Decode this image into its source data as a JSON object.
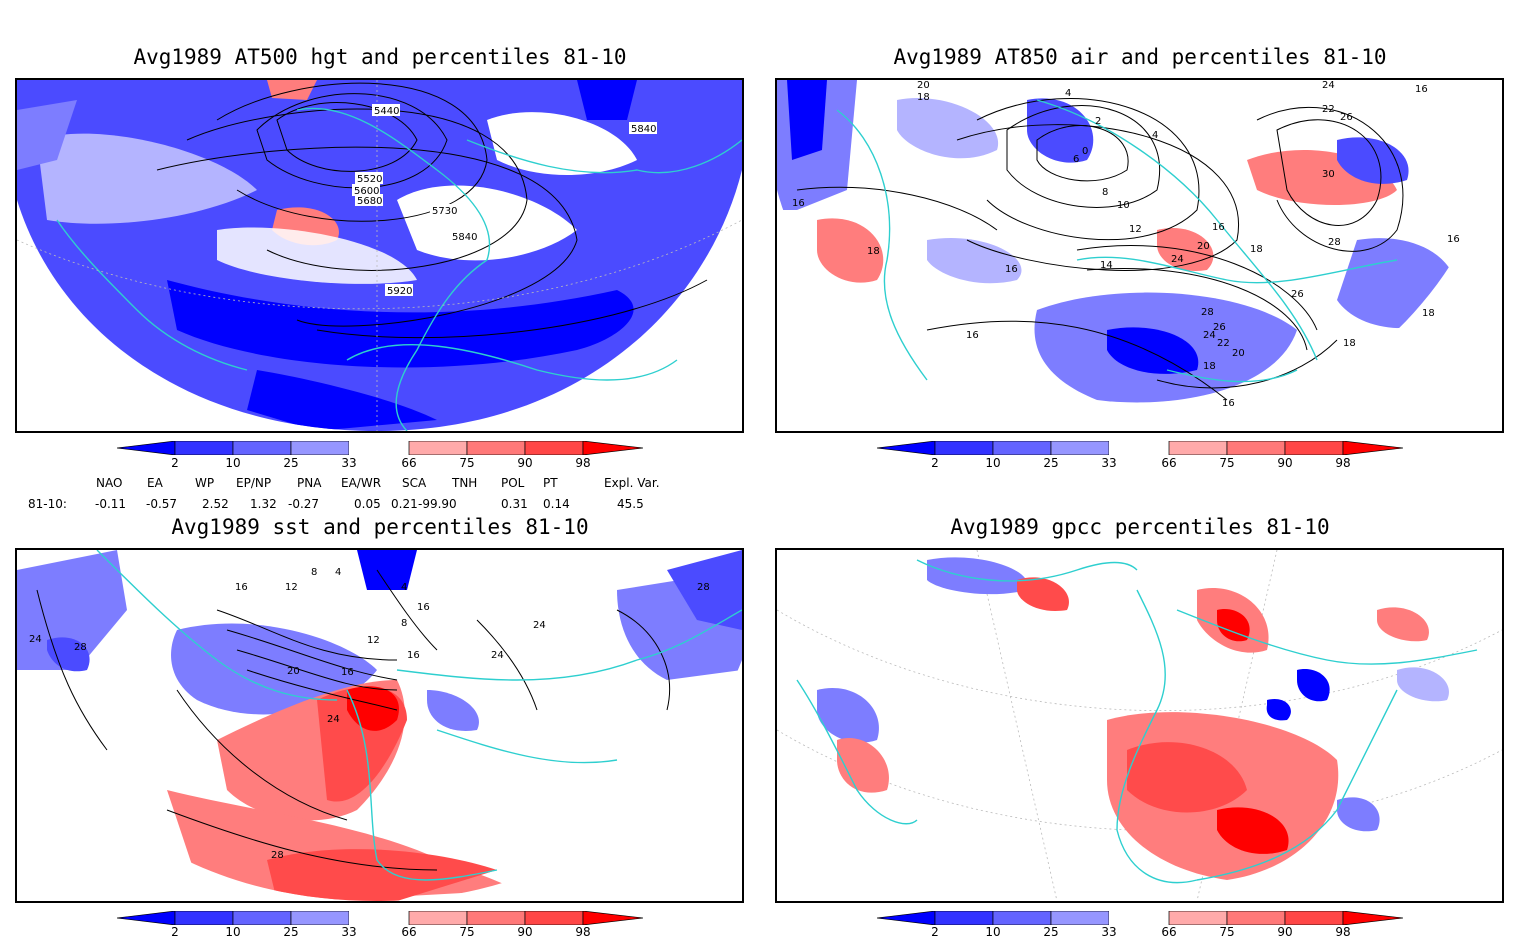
{
  "colors": {
    "blue_dark": "#0000ff",
    "blue_mid": "#4b4bff",
    "blue_light": "#7d7dff",
    "blue_pale": "#b4b4ff",
    "red_pale": "#ffb4b4",
    "red_light": "#ff7d7d",
    "red_mid": "#ff4b4b",
    "red_dark": "#ff0000",
    "coast": "#2ecfcf"
  },
  "panels": [
    {
      "title": "Avg1989 AT500 hgt and percentiles 81-10",
      "contour_labels": [
        "5440",
        "5840",
        "5520",
        "5600",
        "5680",
        "5730",
        "5840",
        "5920"
      ]
    },
    {
      "title": "Avg1989 AT850 air and percentiles 81-10",
      "contour_labels": [
        "20",
        "18",
        "4",
        "24",
        "22",
        "26",
        "16",
        "2",
        "0",
        "4",
        "6",
        "8",
        "10",
        "12",
        "30",
        "16",
        "18",
        "16",
        "14",
        "16",
        "20",
        "24",
        "18",
        "26",
        "28",
        "28",
        "26",
        "24",
        "22",
        "20",
        "18",
        "18",
        "16",
        "16",
        "16",
        "18"
      ]
    },
    {
      "title": "Avg1989 sst and percentiles 81-10",
      "contour_labels": [
        "24",
        "28",
        "16",
        "12",
        "8",
        "4",
        "4",
        "8",
        "12",
        "16",
        "20",
        "16",
        "24",
        "24",
        "28",
        "28",
        "24",
        "16"
      ]
    },
    {
      "title": "Avg1989 gpcc percentiles 81-10",
      "contour_labels": []
    }
  ],
  "colorbar_labels": [
    "2",
    "10",
    "25",
    "33",
    "66",
    "75",
    "90",
    "98"
  ],
  "indices": {
    "headers": [
      "NAO",
      "EA",
      "WP",
      "EP/NP",
      "PNA",
      "EA/WR",
      "SCA",
      "TNH",
      "POL",
      "PT",
      "Expl. Var."
    ],
    "row_label": "81-10:",
    "values": [
      "-0.11",
      "-0.57",
      "2.52",
      "1.32",
      "-0.27",
      "0.05",
      "0.21",
      "-99.90",
      "0.31",
      "0.14",
      "45.5"
    ]
  }
}
